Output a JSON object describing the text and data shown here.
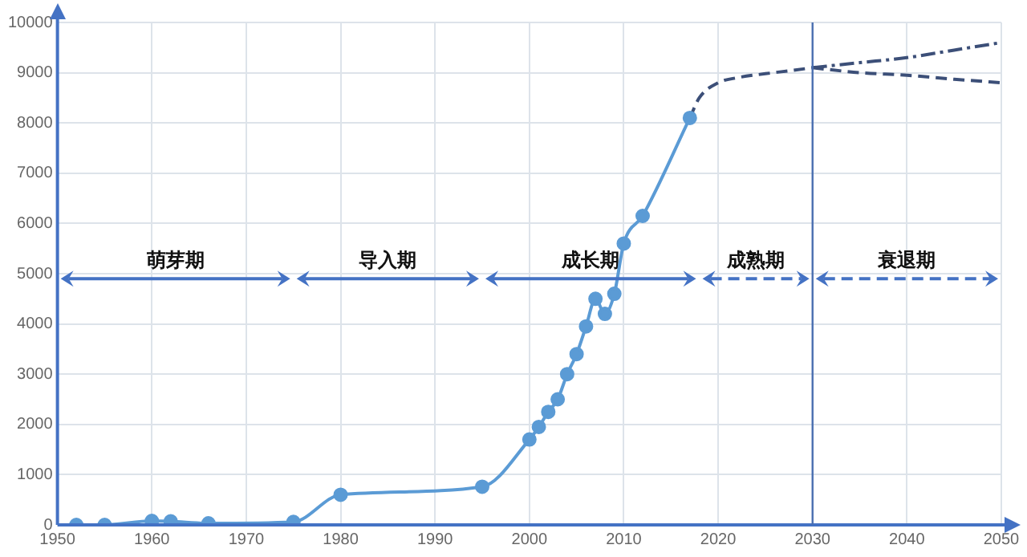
{
  "chart_data": {
    "type": "line",
    "xlim": [
      1950,
      2050
    ],
    "xticks": [
      1950,
      1960,
      1970,
      1980,
      1990,
      2000,
      2010,
      2020,
      2030,
      2040,
      2050
    ],
    "ylim": [
      0,
      10000
    ],
    "yticks": [
      0,
      1000,
      2000,
      3000,
      4000,
      5000,
      6000,
      7000,
      8000,
      9000,
      10000
    ],
    "grid": true,
    "legend": false,
    "series": [
      {
        "color": "#5b9bd5",
        "marker": "circle",
        "line_style": "solid",
        "x": [
          1952,
          1955,
          1960,
          1962,
          1966,
          1975,
          1980,
          1995,
          2000,
          2001,
          2002,
          2003,
          2004,
          2005,
          2006,
          2007,
          2008,
          2009,
          2010,
          2012,
          2017
        ],
        "values": [
          0,
          0,
          80,
          70,
          30,
          60,
          600,
          760,
          1700,
          1950,
          2250,
          2500,
          3000,
          3400,
          3950,
          4500,
          4200,
          4600,
          5600,
          6150,
          8100
        ]
      },
      {
        "color": "#3c4f78",
        "marker": "none",
        "line_style": "dashed",
        "x": [
          2017,
          2018,
          2020,
          2022,
          2025,
          2028,
          2030
        ],
        "values": [
          8100,
          8500,
          8800,
          8900,
          8980,
          9050,
          9100
        ]
      },
      {
        "color": "#3c4f78",
        "marker": "none",
        "line_style": "dotted",
        "x": [
          2030,
          2035,
          2040,
          2045,
          2050
        ],
        "values": [
          9100,
          9200,
          9300,
          9450,
          9600
        ]
      },
      {
        "color": "#3c4f78",
        "marker": "none",
        "line_style": "dashed",
        "x": [
          2030,
          2035,
          2040,
          2045,
          2050
        ],
        "values": [
          9100,
          9000,
          8950,
          8870,
          8800
        ]
      }
    ],
    "ref_lines": [
      {
        "axis": "x",
        "value": 2030,
        "color": "#4a6fb0"
      }
    ],
    "annotations": [
      "萌芽期",
      "导入期",
      "成长期",
      "成熟期",
      "衰退期"
    ]
  }
}
